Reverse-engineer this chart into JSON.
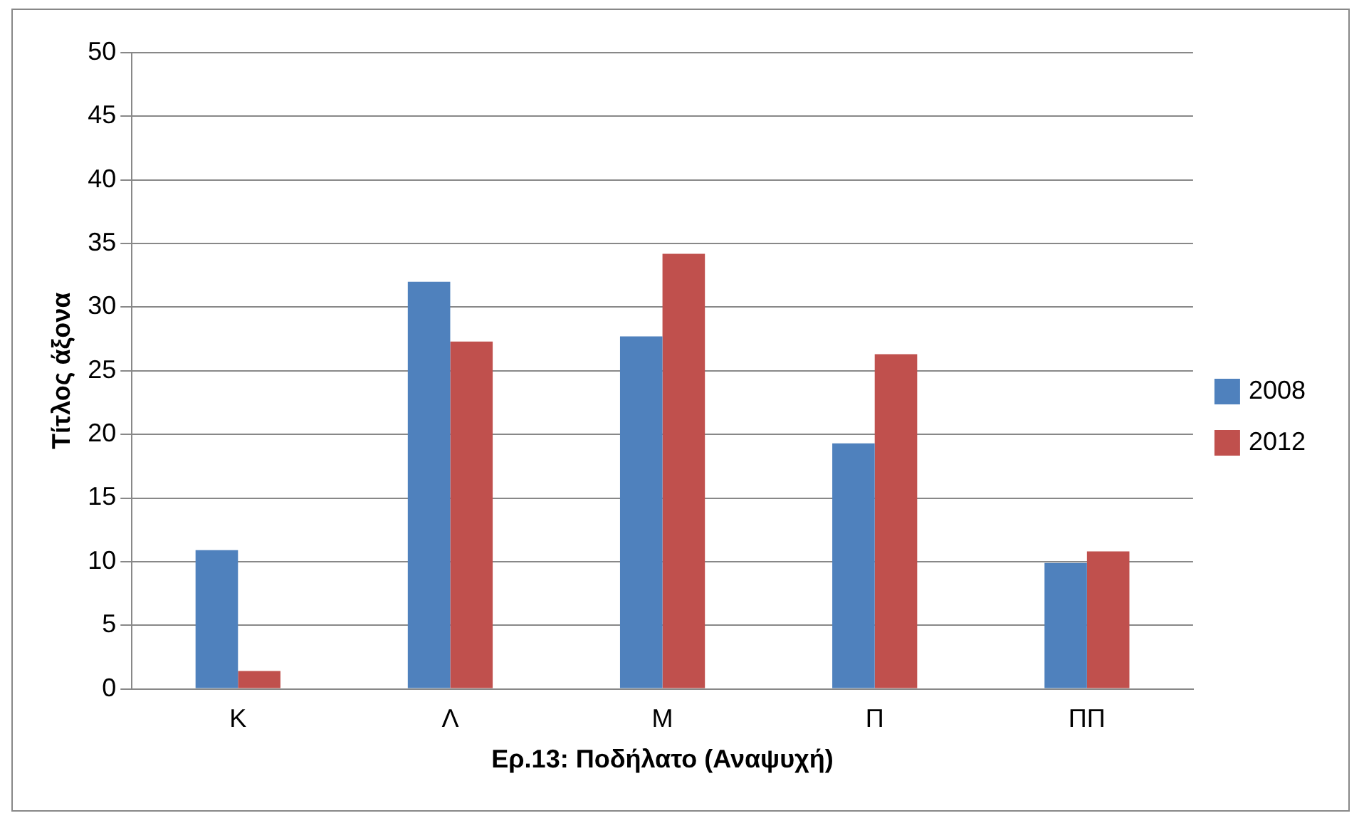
{
  "chart_data": {
    "type": "bar",
    "xlabel": "Ερ.13: Ποδήλατο (Αναψυχή)",
    "ylabel": "Τίτλος άξονα",
    "categories": [
      "Κ",
      "Λ",
      "Μ",
      "Π",
      "ΠΠ"
    ],
    "series": [
      {
        "name": "2008",
        "color": "#4f81bd",
        "values": [
          10.9,
          32,
          27.7,
          19.3,
          9.9
        ]
      },
      {
        "name": "2012",
        "color": "#c0504d",
        "values": [
          1.4,
          27.3,
          34.2,
          26.3,
          10.8
        ]
      }
    ],
    "ylim": [
      0,
      50
    ],
    "yticks": [
      0,
      5,
      10,
      15,
      20,
      25,
      30,
      35,
      40,
      45,
      50
    ],
    "grid": "y",
    "legend": "right"
  }
}
